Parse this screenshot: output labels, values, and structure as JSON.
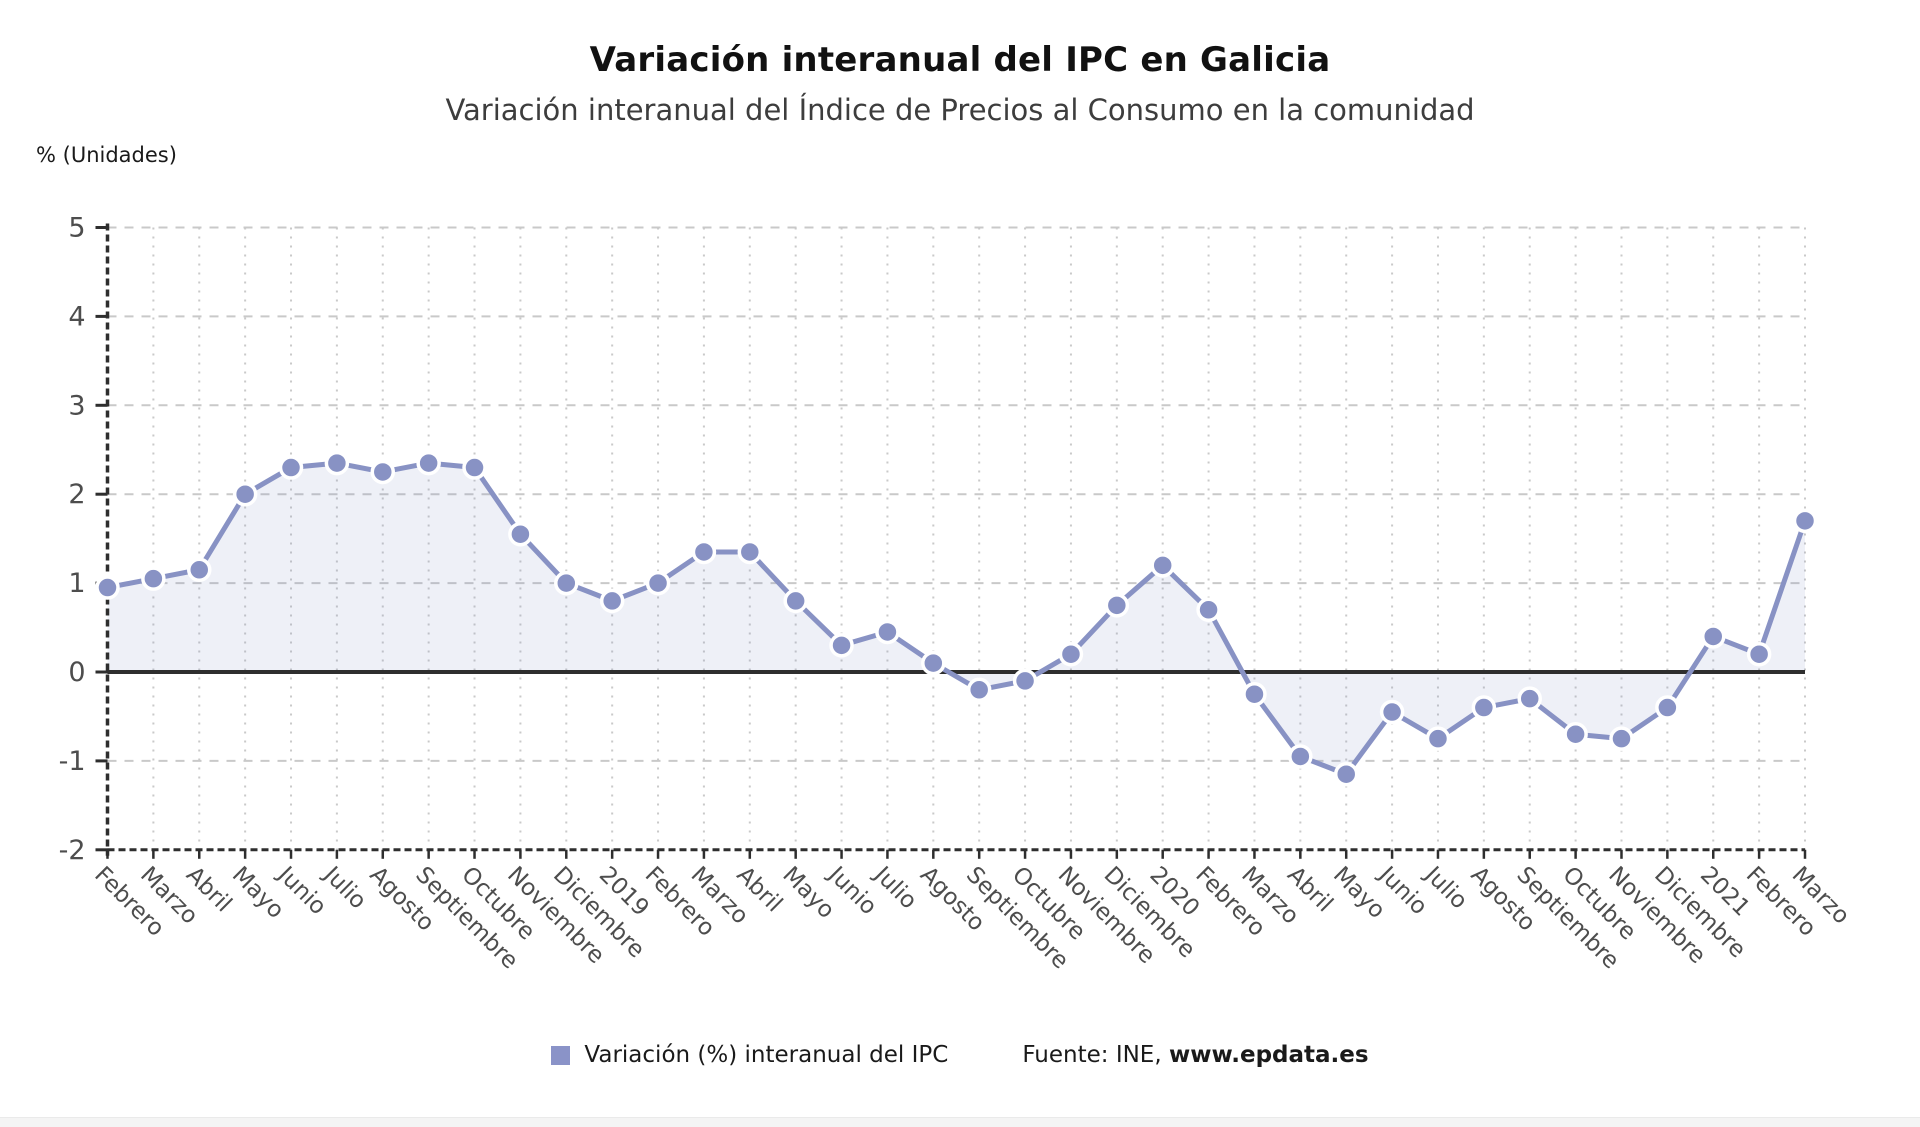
{
  "header": {
    "title": "Variación interanual del IPC en Galicia",
    "subtitle": "Variación interanual del Índice de Precios al Consumo en la comunidad"
  },
  "chart_data": {
    "type": "line",
    "title": "Variación interanual del IPC en Galicia",
    "subtitle": "Variación interanual del Índice de Precios al Consumo en la comunidad",
    "ylabel": "% (Unidades)",
    "xlabel": "",
    "ylim": [
      -2,
      5
    ],
    "y_ticks": [
      5,
      4,
      3,
      2,
      1,
      0,
      -1,
      -2
    ],
    "grid": true,
    "legend_position": "bottom",
    "categories": [
      "Febrero",
      "Marzo",
      "Abril",
      "Mayo",
      "Junio",
      "Julio",
      "Agosto",
      "Septiembre",
      "Octubre",
      "Noviembre",
      "Diciembre",
      "2019",
      "Febrero",
      "Marzo",
      "Abril",
      "Mayo",
      "Junio",
      "Julio",
      "Agosto",
      "Septiembre",
      "Octubre",
      "Noviembre",
      "Diciembre",
      "2020",
      "Febrero",
      "Marzo",
      "Abril",
      "Mayo",
      "Junio",
      "Julio",
      "Agosto",
      "Septiembre",
      "Octubre",
      "Noviembre",
      "Diciembre",
      "2021",
      "Febrero",
      "Marzo"
    ],
    "series": [
      {
        "name": "Variación (%) interanual del IPC",
        "values": [
          0.95,
          1.05,
          1.15,
          2.0,
          2.3,
          2.35,
          2.25,
          2.35,
          2.3,
          1.55,
          1.0,
          0.8,
          1.0,
          1.35,
          1.35,
          0.8,
          0.3,
          0.45,
          0.1,
          -0.2,
          -0.1,
          0.2,
          0.75,
          1.2,
          0.7,
          -0.25,
          -0.95,
          -1.15,
          -0.45,
          -0.75,
          -0.4,
          -0.3,
          -0.7,
          -0.75,
          -0.4,
          0.4,
          0.2,
          1.7
        ]
      }
    ],
    "colors": {
      "line": "#8892c4",
      "marker_fill": "#8892c4",
      "marker_stroke": "#ffffff",
      "area_fill": "rgba(136,146,196,0.14)",
      "grid": "#c9c9c9",
      "axis": "#2e2e2e",
      "zero_line": "#2e2e2e",
      "tick_text": "#4d4d4d"
    }
  },
  "legend": {
    "series_label": "Variación (%) interanual del IPC",
    "source_prefix": "Fuente: INE, ",
    "source_site": "www.epdata.es",
    "swatch_color": "#8a93c8"
  }
}
